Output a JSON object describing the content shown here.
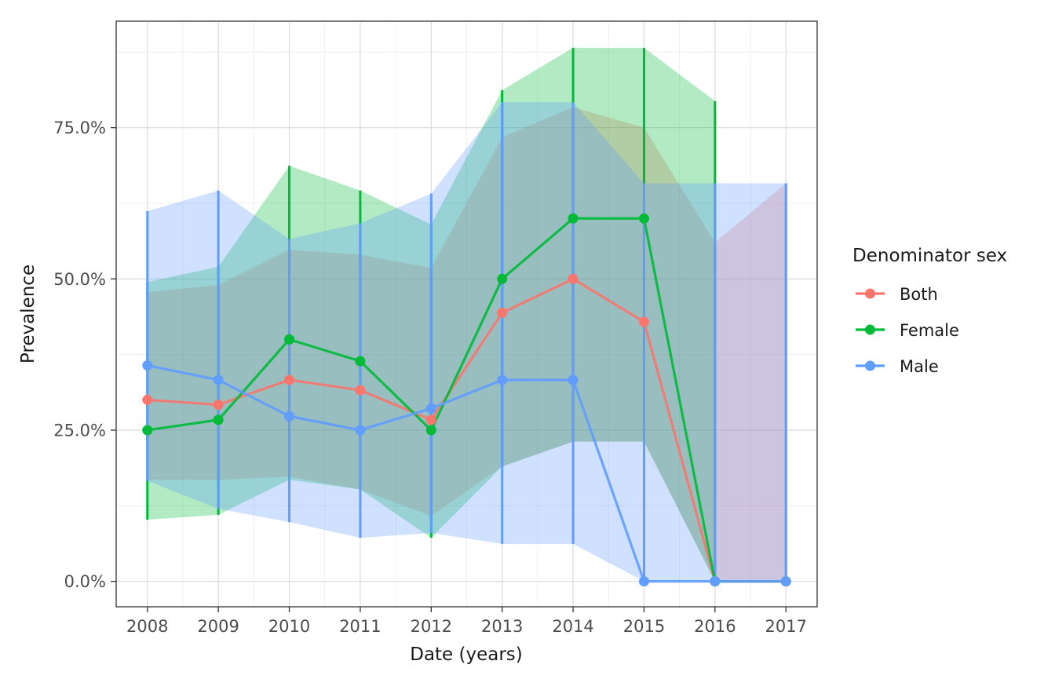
{
  "chart_data": {
    "type": "line",
    "x": [
      2008,
      2009,
      2010,
      2011,
      2012,
      2013,
      2014,
      2015,
      2016,
      2017
    ],
    "xlabel": "Date (years)",
    "ylabel": "Prevalence",
    "xlim": [
      2007.56,
      2017.44
    ],
    "ylim": [
      -0.042,
      0.926
    ],
    "y_ticks": [
      0,
      0.25,
      0.5,
      0.75
    ],
    "y_tick_labels": [
      "0.0%",
      "25.0%",
      "50.0%",
      "75.0%"
    ],
    "x_tick_labels": [
      "2008",
      "2009",
      "2010",
      "2011",
      "2012",
      "2013",
      "2014",
      "2015",
      "2016",
      "2017"
    ],
    "grid": true,
    "legend_title": "Denominator sex",
    "legend_position": "right",
    "series": [
      {
        "name": "Both",
        "color": "#F8766D",
        "values": [
          0.3,
          0.292,
          0.333,
          0.316,
          0.267,
          0.444,
          0.5,
          0.429,
          0.0,
          0.0
        ],
        "lower": [
          0.168,
          0.168,
          0.173,
          0.152,
          0.108,
          0.19,
          0.231,
          0.231,
          0.0,
          0.0
        ],
        "upper": [
          0.478,
          0.49,
          0.548,
          0.54,
          0.518,
          0.734,
          0.784,
          0.75,
          0.56,
          0.658
        ]
      },
      {
        "name": "Female",
        "color": "#00BA38",
        "values": [
          0.25,
          0.267,
          0.4,
          0.364,
          0.25,
          0.5,
          0.6,
          0.6,
          0.0,
          0.0
        ],
        "lower": [
          0.102,
          0.11,
          0.168,
          0.152,
          0.072,
          0.19,
          0.231,
          0.231,
          0.0,
          0.0
        ],
        "upper": [
          0.495,
          0.52,
          0.687,
          0.646,
          0.59,
          0.812,
          0.882,
          0.882,
          0.794,
          null
        ]
      },
      {
        "name": "Male",
        "color": "#619CFF",
        "values": [
          0.357,
          0.333,
          0.273,
          0.25,
          0.286,
          0.333,
          0.333,
          0.0,
          0.0,
          0.0
        ],
        "lower": [
          0.166,
          0.12,
          0.098,
          0.072,
          0.08,
          0.062,
          0.062,
          0.0,
          0.0,
          0.0
        ],
        "upper": [
          0.612,
          0.646,
          0.566,
          0.592,
          0.641,
          0.792,
          0.792,
          0.658,
          0.658,
          0.658
        ]
      }
    ]
  }
}
